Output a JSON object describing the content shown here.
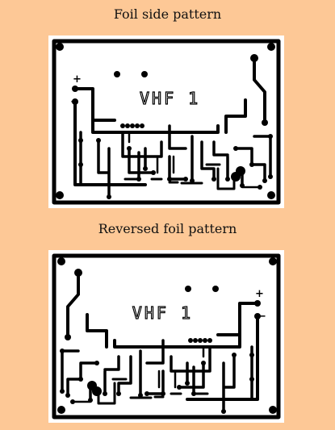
{
  "captions": {
    "top": "Foil side pattern",
    "bottom": "Reversed foil pattern"
  },
  "boards": {
    "top": {
      "label": "VHF 1",
      "plus": "+",
      "minus": "−"
    },
    "bottom": {
      "label": "VHF 1",
      "plus": "+",
      "minus": "−"
    }
  },
  "colors": {
    "background": "#fdc896",
    "board": "#ffffff",
    "copper": "#000000"
  }
}
